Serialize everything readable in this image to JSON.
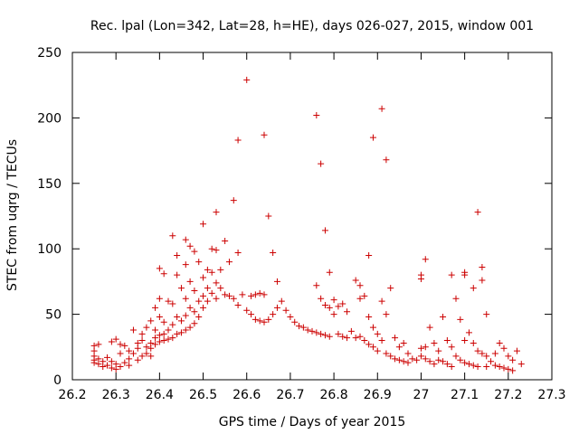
{
  "chart_data": {
    "type": "scatter",
    "title": "Rec. lpal (Lon=342, Lat=28, h=HE), days 026-027, 2015, window 001",
    "xlabel": "GPS time / Days of year 2015",
    "ylabel": "STEC from uqrg / TECUs",
    "xlim": [
      26.2,
      27.3
    ],
    "ylim": [
      0,
      250
    ],
    "xticks": [
      26.2,
      26.3,
      26.4,
      26.5,
      26.6,
      26.7,
      26.8,
      26.9,
      27,
      27.1,
      27.2,
      27.3
    ],
    "xtick_labels": [
      "26.2",
      "26.3",
      "26.4",
      "26.5",
      "26.6",
      "26.7",
      "26.8",
      "26.9",
      "27",
      "27.1",
      "27.2",
      "27.3"
    ],
    "yticks": [
      0,
      50,
      100,
      150,
      200,
      250
    ],
    "ytick_labels": [
      "0",
      "50",
      "100",
      "150",
      "200",
      "250"
    ],
    "grid": false,
    "marker": "+",
    "color": "#cc0000",
    "series": [
      {
        "name": "STEC",
        "points": [
          [
            26.25,
            26
          ],
          [
            26.26,
            27
          ],
          [
            26.25,
            22
          ],
          [
            26.25,
            18
          ],
          [
            26.25,
            15
          ],
          [
            26.25,
            13
          ],
          [
            26.26,
            16
          ],
          [
            26.26,
            12
          ],
          [
            26.27,
            14
          ],
          [
            26.27,
            10
          ],
          [
            26.28,
            17
          ],
          [
            26.28,
            11
          ],
          [
            26.29,
            9
          ],
          [
            26.29,
            14
          ],
          [
            26.29,
            29
          ],
          [
            26.3,
            31
          ],
          [
            26.3,
            12
          ],
          [
            26.3,
            8
          ],
          [
            26.31,
            20
          ],
          [
            26.31,
            27
          ],
          [
            26.31,
            10
          ],
          [
            26.32,
            26
          ],
          [
            26.32,
            13
          ],
          [
            26.33,
            16
          ],
          [
            26.33,
            22
          ],
          [
            26.33,
            11
          ],
          [
            26.34,
            38
          ],
          [
            26.34,
            20
          ],
          [
            26.35,
            28
          ],
          [
            26.35,
            24
          ],
          [
            26.35,
            15
          ],
          [
            26.36,
            35
          ],
          [
            26.36,
            30
          ],
          [
            26.36,
            18
          ],
          [
            26.37,
            40
          ],
          [
            26.37,
            25
          ],
          [
            26.37,
            20
          ],
          [
            26.38,
            45
          ],
          [
            26.38,
            28
          ],
          [
            26.38,
            24
          ],
          [
            26.38,
            18
          ],
          [
            26.39,
            55
          ],
          [
            26.39,
            38
          ],
          [
            26.39,
            32
          ],
          [
            26.39,
            27
          ],
          [
            26.4,
            85
          ],
          [
            26.4,
            62
          ],
          [
            26.4,
            48
          ],
          [
            26.4,
            34
          ],
          [
            26.4,
            29
          ],
          [
            26.41,
            81
          ],
          [
            26.41,
            44
          ],
          [
            26.41,
            35
          ],
          [
            26.41,
            30
          ],
          [
            26.42,
            60
          ],
          [
            26.42,
            38
          ],
          [
            26.42,
            31
          ],
          [
            26.43,
            110
          ],
          [
            26.43,
            58
          ],
          [
            26.43,
            42
          ],
          [
            26.43,
            32
          ],
          [
            26.44,
            95
          ],
          [
            26.44,
            80
          ],
          [
            26.44,
            48
          ],
          [
            26.44,
            35
          ],
          [
            26.45,
            70
          ],
          [
            26.45,
            45
          ],
          [
            26.45,
            36
          ],
          [
            26.46,
            107
          ],
          [
            26.46,
            88
          ],
          [
            26.46,
            62
          ],
          [
            26.46,
            49
          ],
          [
            26.46,
            38
          ],
          [
            26.47,
            102
          ],
          [
            26.47,
            75
          ],
          [
            26.47,
            55
          ],
          [
            26.47,
            40
          ],
          [
            26.48,
            98
          ],
          [
            26.48,
            68
          ],
          [
            26.48,
            52
          ],
          [
            26.48,
            43
          ],
          [
            26.49,
            90
          ],
          [
            26.49,
            60
          ],
          [
            26.49,
            48
          ],
          [
            26.5,
            119
          ],
          [
            26.5,
            78
          ],
          [
            26.5,
            64
          ],
          [
            26.5,
            55
          ],
          [
            26.51,
            84
          ],
          [
            26.51,
            70
          ],
          [
            26.51,
            60
          ],
          [
            26.52,
            100
          ],
          [
            26.52,
            82
          ],
          [
            26.52,
            66
          ],
          [
            26.53,
            128
          ],
          [
            26.53,
            99
          ],
          [
            26.53,
            74
          ],
          [
            26.53,
            62
          ],
          [
            26.54,
            84
          ],
          [
            26.54,
            70
          ],
          [
            26.55,
            106
          ],
          [
            26.55,
            65
          ],
          [
            26.56,
            90
          ],
          [
            26.56,
            64
          ],
          [
            26.57,
            137
          ],
          [
            26.57,
            62
          ],
          [
            26.58,
            183
          ],
          [
            26.58,
            97
          ],
          [
            26.58,
            57
          ],
          [
            26.59,
            65
          ],
          [
            26.6,
            229
          ],
          [
            26.6,
            53
          ],
          [
            26.61,
            64
          ],
          [
            26.61,
            50
          ],
          [
            26.62,
            65
          ],
          [
            26.62,
            46
          ],
          [
            26.63,
            66
          ],
          [
            26.63,
            45
          ],
          [
            26.64,
            187
          ],
          [
            26.64,
            65
          ],
          [
            26.64,
            44
          ],
          [
            26.65,
            125
          ],
          [
            26.65,
            46
          ],
          [
            26.66,
            97
          ],
          [
            26.66,
            50
          ],
          [
            26.67,
            75
          ],
          [
            26.67,
            55
          ],
          [
            26.68,
            60
          ],
          [
            26.69,
            53
          ],
          [
            26.7,
            48
          ],
          [
            26.71,
            44
          ],
          [
            26.72,
            41
          ],
          [
            26.73,
            40
          ],
          [
            26.74,
            38
          ],
          [
            26.75,
            37
          ],
          [
            26.76,
            202
          ],
          [
            26.76,
            72
          ],
          [
            26.76,
            36
          ],
          [
            26.77,
            165
          ],
          [
            26.77,
            62
          ],
          [
            26.77,
            35
          ],
          [
            26.78,
            114
          ],
          [
            26.78,
            57
          ],
          [
            26.78,
            34
          ],
          [
            26.79,
            82
          ],
          [
            26.79,
            55
          ],
          [
            26.79,
            33
          ],
          [
            26.8,
            61
          ],
          [
            26.8,
            50
          ],
          [
            26.81,
            56
          ],
          [
            26.81,
            35
          ],
          [
            26.82,
            58
          ],
          [
            26.82,
            33
          ],
          [
            26.83,
            52
          ],
          [
            26.83,
            32
          ],
          [
            26.84,
            37
          ],
          [
            26.85,
            76
          ],
          [
            26.85,
            32
          ],
          [
            26.86,
            72
          ],
          [
            26.86,
            62
          ],
          [
            26.86,
            33
          ],
          [
            26.87,
            64
          ],
          [
            26.87,
            30
          ],
          [
            26.88,
            95
          ],
          [
            26.88,
            48
          ],
          [
            26.88,
            27
          ],
          [
            26.89,
            185
          ],
          [
            26.89,
            40
          ],
          [
            26.89,
            25
          ],
          [
            26.9,
            35
          ],
          [
            26.9,
            22
          ],
          [
            26.91,
            207
          ],
          [
            26.91,
            60
          ],
          [
            26.91,
            30
          ],
          [
            26.92,
            168
          ],
          [
            26.92,
            50
          ],
          [
            26.92,
            20
          ],
          [
            26.93,
            70
          ],
          [
            26.93,
            18
          ],
          [
            26.94,
            32
          ],
          [
            26.94,
            16
          ],
          [
            26.95,
            25
          ],
          [
            26.95,
            15
          ],
          [
            26.96,
            28
          ],
          [
            26.96,
            14
          ],
          [
            26.97,
            20
          ],
          [
            26.97,
            13
          ],
          [
            26.98,
            16
          ],
          [
            26.99,
            15
          ],
          [
            27.0,
            80
          ],
          [
            27.0,
            77
          ],
          [
            27.0,
            24
          ],
          [
            27.0,
            18
          ],
          [
            27.01,
            92
          ],
          [
            27.01,
            25
          ],
          [
            27.01,
            16
          ],
          [
            27.02,
            40
          ],
          [
            27.02,
            14
          ],
          [
            27.03,
            28
          ],
          [
            27.03,
            12
          ],
          [
            27.04,
            22
          ],
          [
            27.04,
            15
          ],
          [
            27.05,
            48
          ],
          [
            27.05,
            14
          ],
          [
            27.06,
            30
          ],
          [
            27.06,
            12
          ],
          [
            27.07,
            80
          ],
          [
            27.07,
            25
          ],
          [
            27.07,
            10
          ],
          [
            27.08,
            62
          ],
          [
            27.08,
            18
          ],
          [
            27.09,
            46
          ],
          [
            27.09,
            15
          ],
          [
            27.1,
            82
          ],
          [
            27.1,
            80
          ],
          [
            27.1,
            30
          ],
          [
            27.1,
            13
          ],
          [
            27.11,
            36
          ],
          [
            27.11,
            12
          ],
          [
            27.12,
            70
          ],
          [
            27.12,
            28
          ],
          [
            27.12,
            11
          ],
          [
            27.13,
            128
          ],
          [
            27.13,
            22
          ],
          [
            27.13,
            10
          ],
          [
            27.14,
            76
          ],
          [
            27.14,
            86
          ],
          [
            27.14,
            20
          ],
          [
            27.15,
            50
          ],
          [
            27.15,
            18
          ],
          [
            27.15,
            10
          ],
          [
            27.16,
            14
          ],
          [
            27.17,
            20
          ],
          [
            27.17,
            11
          ],
          [
            27.18,
            28
          ],
          [
            27.18,
            10
          ],
          [
            27.19,
            24
          ],
          [
            27.19,
            9
          ],
          [
            27.2,
            18
          ],
          [
            27.2,
            8
          ],
          [
            27.21,
            15
          ],
          [
            27.21,
            7
          ],
          [
            27.22,
            22
          ],
          [
            27.23,
            12
          ]
        ]
      }
    ]
  }
}
